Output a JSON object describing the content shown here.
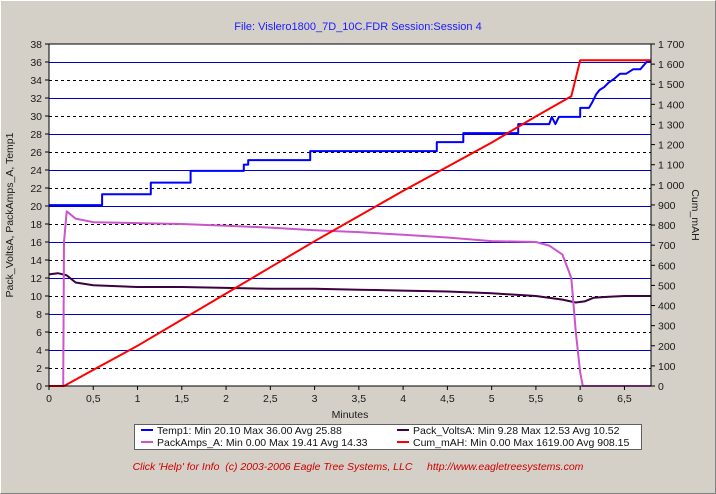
{
  "header": {
    "title": "File: Vislero1800_7D_10C.FDR   Session:Session 4"
  },
  "footer": {
    "help": "Click 'Help' for Info  (c) 2003-2006 Eagle Tree Systems, LLC",
    "url": "http://www.eagletreesystems.com"
  },
  "legend": {
    "temp1": "Temp1:  Min 20.10 Max 36.00 Avg 25.88",
    "pack_volts": "Pack_VoltsA:  Min 9.28 Max 12.53 Avg 10.52",
    "pack_amps": "PackAmps_A:  Min 0.00 Max 19.41 Avg 14.33",
    "cum_mah": "Cum_mAH:  Min 0.00 Max 1619.00 Avg 908.15"
  },
  "chart_data": {
    "type": "line",
    "xlabel": "Minutes",
    "ylabel": "Pack_VoltsA, PackAmps_A, Temp1",
    "y2label": "Cum_mAH",
    "xlim": [
      0,
      6.8
    ],
    "ylim": [
      0,
      38
    ],
    "y2lim": [
      0,
      1700
    ],
    "x_ticks": [
      "0",
      "0,5",
      "1",
      "1,5",
      "2",
      "2,5",
      "3",
      "3,5",
      "4",
      "4,5",
      "5",
      "5,5",
      "6",
      "6,5"
    ],
    "y_ticks": [
      "0",
      "2",
      "4",
      "6",
      "8",
      "10",
      "12",
      "14",
      "16",
      "18",
      "20",
      "22",
      "24",
      "26",
      "28",
      "30",
      "32",
      "34",
      "36",
      "38"
    ],
    "y2_ticks": [
      "0",
      "100",
      "200",
      "300",
      "400",
      "500",
      "600",
      "700",
      "800",
      "900",
      "1 000",
      "1 100",
      "1 200",
      "1 300",
      "1 400",
      "1 500",
      "1 600",
      "1 700"
    ],
    "grid": true,
    "legend_position": "bottom",
    "colors": {
      "plot_bg": "#ffffff",
      "grid_solid": "#0000cc",
      "grid_dashed": "#000000",
      "temp1": "#0000ff",
      "pack_volts": "#3d0040",
      "pack_amps": "#cc55cc",
      "cum_mah": "#ff0000"
    },
    "series": [
      {
        "name": "Temp1",
        "axis": "left",
        "color": "#0000ff",
        "x": [
          0,
          0.6,
          0.6,
          1.15,
          1.15,
          1.6,
          1.6,
          2.2,
          2.2,
          2.25,
          2.25,
          2.95,
          2.95,
          4.38,
          4.38,
          4.68,
          4.68,
          5.3,
          5.3,
          5.65,
          5.68,
          5.72,
          5.76,
          6.0,
          6.0,
          6.1,
          6.14,
          6.18,
          6.22,
          6.27,
          6.32,
          6.38,
          6.45,
          6.52,
          6.6,
          6.68,
          6.75,
          6.8
        ],
        "y": [
          20.1,
          20.1,
          21.3,
          21.3,
          22.6,
          22.6,
          23.9,
          23.9,
          24.6,
          24.6,
          25.1,
          25.1,
          26.1,
          26.1,
          27.1,
          27.1,
          28.1,
          28.1,
          29.1,
          29.1,
          29.9,
          29.1,
          29.9,
          29.9,
          30.9,
          30.9,
          31.6,
          32.4,
          32.9,
          33.2,
          33.7,
          34.1,
          34.7,
          34.7,
          35.2,
          35.2,
          36.0,
          36.0
        ]
      },
      {
        "name": "Pack_VoltsA",
        "axis": "left",
        "color": "#3d0040",
        "x": [
          0,
          0.1,
          0.2,
          0.3,
          0.5,
          1.0,
          1.5,
          2.0,
          2.5,
          3.0,
          3.5,
          4.0,
          4.5,
          5.0,
          5.5,
          5.8,
          5.95,
          6.05,
          6.15,
          6.3,
          6.5,
          6.8
        ],
        "y": [
          12.4,
          12.53,
          12.3,
          11.5,
          11.2,
          11.0,
          11.0,
          10.9,
          10.8,
          10.8,
          10.7,
          10.6,
          10.5,
          10.3,
          10.0,
          9.6,
          9.28,
          9.4,
          9.8,
          9.9,
          10.0,
          10.0
        ]
      },
      {
        "name": "PackAmps_A",
        "axis": "left",
        "color": "#cc55cc",
        "x": [
          0,
          0.16,
          0.17,
          0.2,
          0.3,
          0.5,
          1.0,
          1.5,
          2.0,
          2.5,
          3.0,
          3.5,
          4.0,
          4.5,
          5.0,
          5.5,
          5.65,
          5.8,
          5.9,
          5.95,
          6.0,
          6.03,
          6.05,
          6.8
        ],
        "y": [
          0,
          0,
          16.0,
          19.41,
          18.6,
          18.2,
          18.1,
          18.0,
          17.8,
          17.6,
          17.3,
          17.1,
          16.8,
          16.5,
          16.1,
          16.0,
          15.6,
          14.6,
          12.0,
          6.0,
          1.5,
          0,
          0,
          0
        ]
      },
      {
        "name": "Cum_mAH",
        "axis": "right",
        "color": "#ff0000",
        "x": [
          0,
          0.17,
          0.5,
          1.0,
          1.5,
          2.0,
          2.5,
          3.0,
          3.5,
          4.0,
          4.5,
          5.0,
          5.5,
          5.9,
          6.0,
          6.8
        ],
        "y": [
          0,
          0,
          80,
          200,
          330,
          460,
          590,
          720,
          845,
          970,
          1090,
          1210,
          1340,
          1440,
          1619,
          1619
        ]
      }
    ]
  }
}
